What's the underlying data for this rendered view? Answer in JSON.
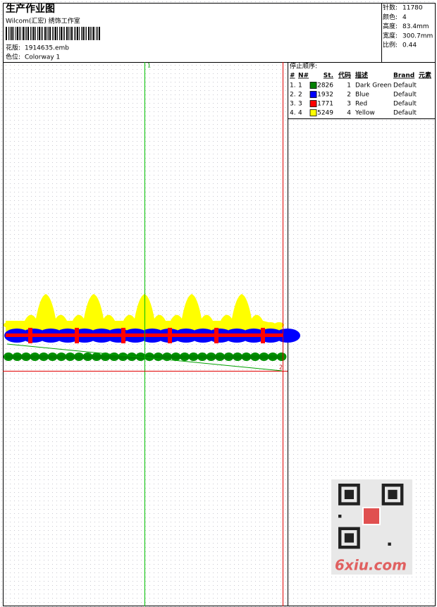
{
  "header": {
    "title": "生产作业图",
    "company": "Wilcom(汇宏) 绣饰工作室",
    "design_label": "花版:",
    "design": "1914635.emb",
    "colorway_label": "色位:",
    "colorway": "Colorway 1"
  },
  "info": [
    {
      "label": "针数:",
      "value": "11780"
    },
    {
      "label": "颜色:",
      "value": "4"
    },
    {
      "label": "高度:",
      "value": "83.4mm"
    },
    {
      "label": "宽度:",
      "value": "300.7mm"
    },
    {
      "label": "比例:",
      "value": "0.44"
    }
  ],
  "stop_sequence": {
    "title": "停止顺序:",
    "columns": [
      "#",
      "N#",
      "St.",
      "代码",
      "描述",
      "Brand",
      "元素"
    ],
    "rows": [
      {
        "index": "1.",
        "number": "1",
        "color": "#008000",
        "stitches": 2826,
        "code": "1",
        "description": "Dark Green",
        "brand": "Default"
      },
      {
        "index": "2.",
        "number": "2",
        "color": "#0000ff",
        "stitches": 1932,
        "code": "2",
        "description": "Blue",
        "brand": "Default"
      },
      {
        "index": "3.",
        "number": "3",
        "color": "#ff0000",
        "stitches": 1771,
        "code": "3",
        "description": "Red",
        "brand": "Default"
      },
      {
        "index": "4.",
        "number": "4",
        "color": "#ffff00",
        "stitches": 5249,
        "code": "4",
        "description": "Yellow",
        "brand": "Default"
      }
    ]
  },
  "markers": [
    "1",
    "2"
  ],
  "watermark": "6xiu.com"
}
